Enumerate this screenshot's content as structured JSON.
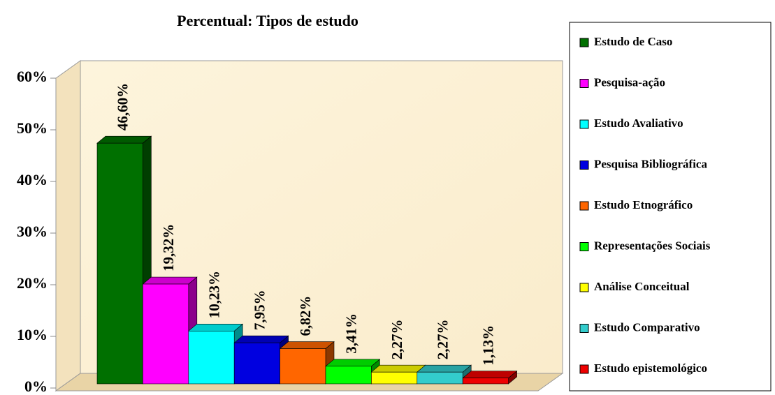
{
  "chart_data": {
    "type": "bar3d",
    "title": "Percentual: Tipos de estudo",
    "categories": [
      "Estudo de Caso",
      "Pesquisa-ação",
      "Estudo Avaliativo",
      "Pesquisa Bibliográfica",
      "Estudo Etnográfico",
      "Representações Sociais",
      "Análise Conceitual",
      "Estudo Comparativo",
      "Estudo epistemológico"
    ],
    "values": [
      46.6,
      19.32,
      10.23,
      7.95,
      6.82,
      3.41,
      2.27,
      2.27,
      1.13
    ],
    "value_labels": [
      "46,60%",
      "19,32%",
      "10,23%",
      "7,95%",
      "6,82%",
      "3,41%",
      "2,27%",
      "2,27%",
      "1,13%"
    ],
    "colors": [
      "#007000",
      "#ff00ff",
      "#00ffff",
      "#0000e0",
      "#ff6600",
      "#00ff00",
      "#ffff00",
      "#33cccc",
      "#ee0000"
    ],
    "ylim": [
      0,
      60
    ],
    "yticks": [
      {
        "value": 0,
        "label": "0%"
      },
      {
        "value": 10,
        "label": "10%"
      },
      {
        "value": 20,
        "label": "20%"
      },
      {
        "value": 30,
        "label": "30%"
      },
      {
        "value": 40,
        "label": "40%"
      },
      {
        "value": 50,
        "label": "50%"
      },
      {
        "value": 60,
        "label": "60%"
      }
    ],
    "legend": "right"
  }
}
